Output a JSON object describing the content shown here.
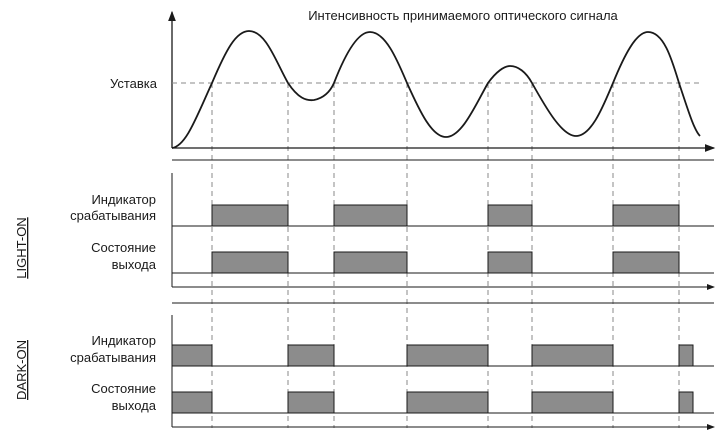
{
  "title": "Интенсивность принимаемого оптического сигнала",
  "threshold_label": "Уставка",
  "modes": [
    {
      "name": "LIGHT-ON",
      "rows": [
        {
          "label_lines": [
            "Индикатор",
            "срабатывания"
          ],
          "active_intervals": [
            [
              1,
              2
            ],
            [
              3,
              4
            ],
            [
              5,
              6
            ],
            [
              7,
              8
            ]
          ]
        },
        {
          "label_lines": [
            "Состояние",
            "выхода"
          ],
          "active_intervals": [
            [
              1,
              2
            ],
            [
              3,
              4
            ],
            [
              5,
              6
            ],
            [
              7,
              8
            ]
          ]
        }
      ]
    },
    {
      "name": "DARK-ON",
      "rows": [
        {
          "label_lines": [
            "Индикатор",
            "срабатывания"
          ],
          "active_intervals": [
            [
              0,
              1
            ],
            [
              2,
              3
            ],
            [
              4,
              5
            ],
            [
              6,
              7
            ],
            [
              8,
              9
            ]
          ]
        },
        {
          "label_lines": [
            "Состояние",
            "выхода"
          ],
          "active_intervals": [
            [
              0,
              1
            ],
            [
              2,
              3
            ],
            [
              4,
              5
            ],
            [
              6,
              7
            ],
            [
              8,
              9
            ]
          ]
        }
      ]
    }
  ],
  "colors": {
    "line": "#1a1a1a",
    "pulse_fill": "#8c8c8c",
    "dash": "#8a8a8a"
  }
}
